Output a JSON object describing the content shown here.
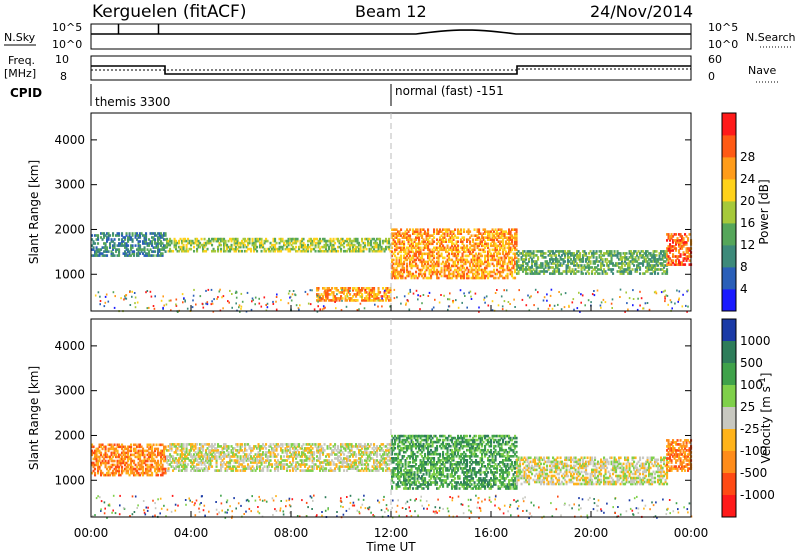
{
  "header": {
    "station": "Kerguelen (fitACF)",
    "beam": "Beam 12",
    "date": "24/Nov/2014"
  },
  "top_panels": {
    "nsky_label": "N.Sky",
    "nsky_ticks": [
      "10^5",
      "10^0"
    ],
    "nsearch_label": "N.Search",
    "nsearch_ticks": [
      "10^5",
      "10^0"
    ],
    "freq_label_1": "Freq.",
    "freq_label_2": "[MHz]",
    "freq_ticks": [
      "10",
      "8"
    ],
    "nave_label": "Nave",
    "nave_ticks": [
      "60",
      "0"
    ],
    "cpid_label": "CPID",
    "cpid_segments": [
      {
        "start_hour": 0,
        "text": "themis 3300"
      },
      {
        "start_hour": 12,
        "text": "normal (fast) -151"
      }
    ]
  },
  "chart_data": [
    {
      "type": "heatmap",
      "title": "",
      "ylabel": "Slant Range [km]",
      "xlabel": "",
      "xlim": [
        0,
        24
      ],
      "ylim": [
        180,
        4600
      ],
      "y_ticks": [
        "1000",
        "2000",
        "3000",
        "4000"
      ],
      "colorbar": {
        "label": "Power [dB]",
        "tick_labels": [
          "4",
          "8",
          "12",
          "16",
          "20",
          "24",
          "28"
        ],
        "range": [
          0,
          30
        ],
        "colors": [
          "#1a1aff",
          "#2a5fb8",
          "#3d8a7a",
          "#55a65a",
          "#a6c93a",
          "#ffd21a",
          "#ff9c1a",
          "#ff5a14",
          "#ff1a1a"
        ]
      },
      "echo_bands": [
        {
          "hours": [
            0,
            3
          ],
          "range_km": [
            1400,
            1900
          ],
          "power_db": 8
        },
        {
          "hours": [
            3,
            12
          ],
          "range_km": [
            1500,
            1800
          ],
          "power_db": 16
        },
        {
          "hours": [
            9,
            12
          ],
          "range_km": [
            400,
            700
          ],
          "power_db": 24
        },
        {
          "hours": [
            12,
            17
          ],
          "range_km": [
            900,
            2000
          ],
          "power_db": 22
        },
        {
          "hours": [
            17,
            23
          ],
          "range_km": [
            1000,
            1500
          ],
          "power_db": 12
        },
        {
          "hours": [
            23,
            24
          ],
          "range_km": [
            1200,
            1900
          ],
          "power_db": 26
        }
      ]
    },
    {
      "type": "heatmap",
      "title": "",
      "ylabel": "Slant Range [km]",
      "xlabel": "Time UT",
      "xlim": [
        0,
        24
      ],
      "ylim": [
        180,
        4600
      ],
      "y_ticks": [
        "1000",
        "2000",
        "3000",
        "4000"
      ],
      "x_ticks": [
        "00:00",
        "04:00",
        "08:00",
        "12:00",
        "16:00",
        "20:00",
        "00:00"
      ],
      "colorbar": {
        "label": "Velocity [m s^-1]",
        "tick_labels": [
          "1000",
          "500",
          "100",
          "25",
          "-25",
          "-100",
          "-500",
          "-1000"
        ],
        "colors": [
          "#1a3aa6",
          "#2e7d5a",
          "#3fa24a",
          "#7fd04a",
          "#c8c8c0",
          "#ffb31a",
          "#ff8c1a",
          "#ff4a14",
          "#ff1a1a"
        ]
      },
      "echo_bands": [
        {
          "hours": [
            0,
            3
          ],
          "range_km": [
            1100,
            1800
          ],
          "velocity": -100
        },
        {
          "hours": [
            3,
            12
          ],
          "range_km": [
            1200,
            1800
          ],
          "velocity": 0
        },
        {
          "hours": [
            12,
            17
          ],
          "range_km": [
            800,
            2000
          ],
          "velocity": 100
        },
        {
          "hours": [
            17,
            23
          ],
          "range_km": [
            900,
            1500
          ],
          "velocity": 0
        },
        {
          "hours": [
            23,
            24
          ],
          "range_km": [
            1200,
            1900
          ],
          "velocity": -100
        }
      ]
    }
  ]
}
